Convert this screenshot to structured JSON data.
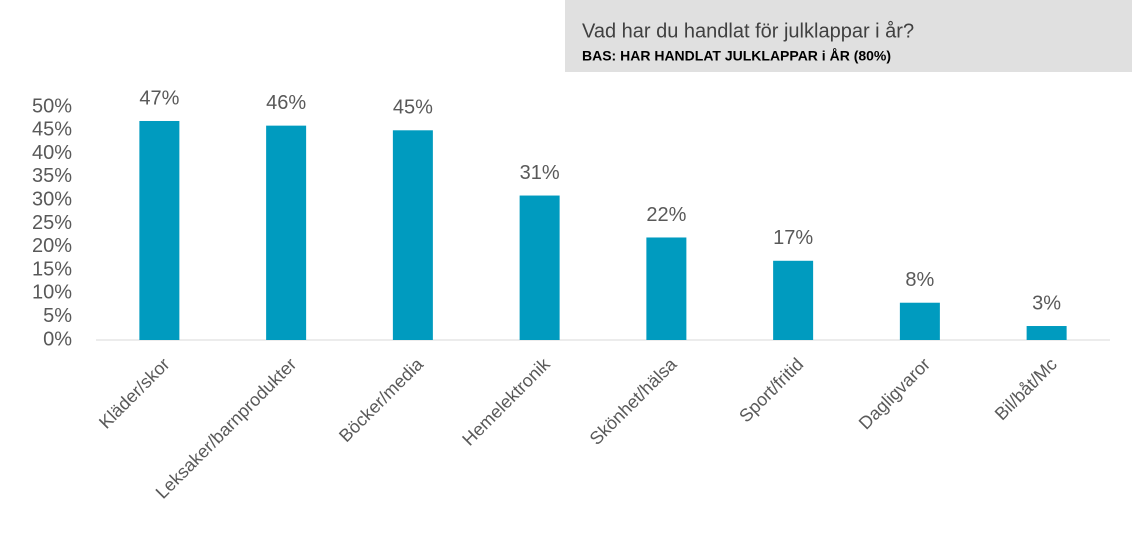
{
  "chart_data": {
    "type": "bar",
    "title": "Vad har du handlat för julklappar i år?",
    "subtitle": "BAS: HAR HANDLAT JULKLAPPAR i ÅR (80%)",
    "categories": [
      "Kläder/skor",
      "Leksaker/barnprodukter",
      "Böcker/media",
      "Hemelektronik",
      "Skönhet/hälsa",
      "Sport/fritid",
      "Dagligvaror",
      "Bil/båt/Mc"
    ],
    "values": [
      47,
      46,
      45,
      31,
      22,
      17,
      8,
      3
    ],
    "value_labels": [
      "47%",
      "46%",
      "45%",
      "31%",
      "22%",
      "17%",
      "8%",
      "3%"
    ],
    "color": "#009bbf",
    "ylim": [
      0,
      50
    ],
    "yticks": [
      {
        "value": 0,
        "label": "0%"
      },
      {
        "value": 5,
        "label": "5%"
      },
      {
        "value": 10,
        "label": "10%"
      },
      {
        "value": 15,
        "label": "15%"
      },
      {
        "value": 20,
        "label": "20%"
      },
      {
        "value": 25,
        "label": "25%"
      },
      {
        "value": 30,
        "label": "30%"
      },
      {
        "value": 35,
        "label": "35%"
      },
      {
        "value": 40,
        "label": "40%"
      },
      {
        "value": 45,
        "label": "45%"
      },
      {
        "value": 50,
        "label": "50%"
      }
    ],
    "grid": false
  }
}
